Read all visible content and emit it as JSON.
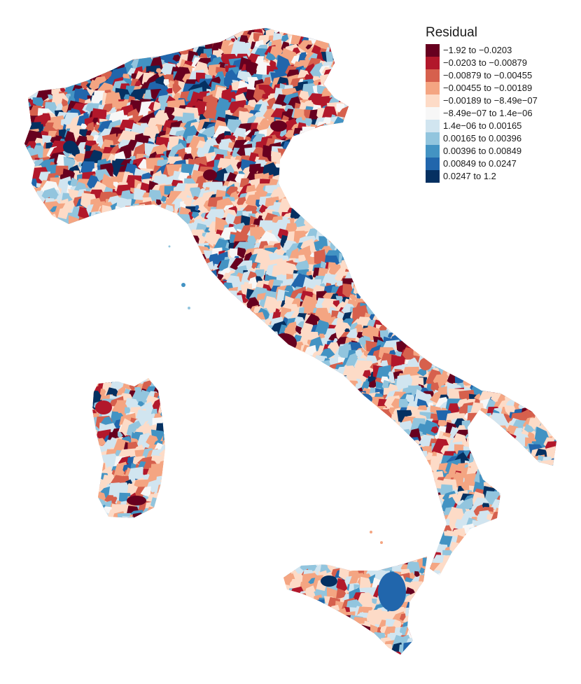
{
  "legend": {
    "title": "Residual",
    "items": [
      {
        "label": "−1.92 to −0.0203",
        "color": "#67001f"
      },
      {
        "label": "−0.0203 to −0.00879",
        "color": "#b2182b"
      },
      {
        "label": "−0.00879 to −0.00455",
        "color": "#d6604d"
      },
      {
        "label": "−0.00455 to −0.00189",
        "color": "#f4a582"
      },
      {
        "label": "−0.00189 to −8.49e−07",
        "color": "#fddbc7"
      },
      {
        "label": "−8.49e−07 to 1.4e−06",
        "color": "#f7f7f7"
      },
      {
        "label": "1.4e−06 to 0.00165",
        "color": "#d1e5f0"
      },
      {
        "label": "0.00165 to 0.00396",
        "color": "#92c5de"
      },
      {
        "label": "0.00396 to 0.00849",
        "color": "#4393c3"
      },
      {
        "label": "0.00849 to 0.0247",
        "color": "#2166ac"
      },
      {
        "label": "0.0247 to 1.2",
        "color": "#053061"
      }
    ]
  }
}
